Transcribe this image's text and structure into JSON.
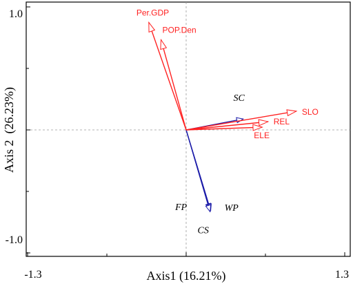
{
  "chart_data": {
    "type": "biplot",
    "title": "",
    "xlabel": "Axis1 (16.21%)",
    "ylabel": "Axis 2  (26.23%)",
    "xlim": [
      -1.3,
      1.3
    ],
    "ylim": [
      -1.0,
      1.0
    ],
    "x_tick_labels": [
      "-1.3",
      "1.3"
    ],
    "y_tick_labels": [
      "1.0",
      "-1.0"
    ],
    "zero_reference_lines": true,
    "colors": {
      "environmental": "#ff2020",
      "response": "#1a1aa8"
    },
    "environmental_vectors": [
      {
        "name": "Per.GDP",
        "x": -0.306,
        "y": 0.874
      },
      {
        "name": "POP.Den",
        "x": -0.206,
        "y": 0.733
      },
      {
        "name": "SLO",
        "x": 0.903,
        "y": 0.152
      },
      {
        "name": "REL",
        "x": 0.671,
        "y": 0.067
      },
      {
        "name": "ELE",
        "x": 0.623,
        "y": 0.022
      }
    ],
    "response_vectors": [
      {
        "name": "SC",
        "x": 0.467,
        "y": 0.089
      },
      {
        "name": "FP",
        "x": 0.196,
        "y": -0.652
      },
      {
        "name": "WP",
        "x": 0.201,
        "y": -0.656
      },
      {
        "name": "CS",
        "x": 0.196,
        "y": -0.665
      }
    ]
  }
}
